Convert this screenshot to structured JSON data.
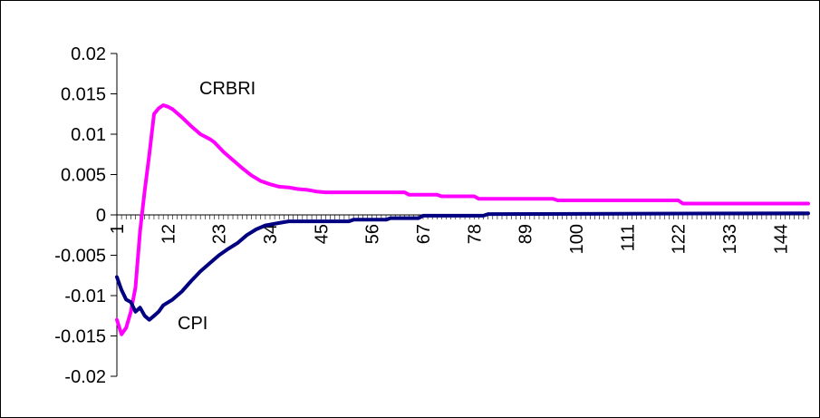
{
  "chart_data": {
    "type": "line",
    "title": "",
    "xlabel": "",
    "ylabel": "",
    "grid": false,
    "legend": "none",
    "xlim": [
      1,
      150
    ],
    "ylim": [
      -0.02,
      0.02
    ],
    "y_ticks": [
      {
        "value": 0.02,
        "label": "0.02"
      },
      {
        "value": 0.015,
        "label": "0.015"
      },
      {
        "value": 0.01,
        "label": "0.01"
      },
      {
        "value": 0.005,
        "label": "0.005"
      },
      {
        "value": 0,
        "label": "0"
      },
      {
        "value": -0.005,
        "label": "-0.005"
      },
      {
        "value": -0.01,
        "label": "-0.01"
      },
      {
        "value": -0.015,
        "label": "-0.015"
      },
      {
        "value": -0.02,
        "label": "-0.02"
      }
    ],
    "x_tick_labels": [
      "1",
      "12",
      "23",
      "34",
      "45",
      "56",
      "67",
      "78",
      "89",
      "100",
      "111",
      "122",
      "133",
      "144"
    ],
    "series": [
      {
        "name": "CRBRI",
        "color": "#ff00ff",
        "points": [
          [
            1,
            -0.013
          ],
          [
            2,
            -0.0148
          ],
          [
            3,
            -0.014
          ],
          [
            4,
            -0.012
          ],
          [
            5,
            -0.009
          ],
          [
            6,
            -0.002
          ],
          [
            7,
            0.003
          ],
          [
            8,
            0.0075
          ],
          [
            9,
            0.0125
          ],
          [
            10,
            0.0132
          ],
          [
            11,
            0.0136
          ],
          [
            12,
            0.0134
          ],
          [
            13,
            0.0131
          ],
          [
            14,
            0.0126
          ],
          [
            15,
            0.0121
          ],
          [
            17,
            0.011
          ],
          [
            19,
            0.01
          ],
          [
            21,
            0.0094
          ],
          [
            22,
            0.009
          ],
          [
            24,
            0.0078
          ],
          [
            26,
            0.0068
          ],
          [
            28,
            0.0058
          ],
          [
            30,
            0.0049
          ],
          [
            32,
            0.0042
          ],
          [
            34,
            0.0038
          ],
          [
            36,
            0.0035
          ],
          [
            38,
            0.0034
          ],
          [
            40,
            0.0032
          ],
          [
            42,
            0.0031
          ],
          [
            44,
            0.0029
          ],
          [
            46,
            0.0028
          ],
          [
            50,
            0.0028
          ],
          [
            55,
            0.0028
          ],
          [
            63,
            0.0028
          ],
          [
            64,
            0.0025
          ],
          [
            70,
            0.0025
          ],
          [
            71,
            0.0023
          ],
          [
            78,
            0.0023
          ],
          [
            79,
            0.002
          ],
          [
            95,
            0.002
          ],
          [
            96,
            0.0018
          ],
          [
            122,
            0.0018
          ],
          [
            123,
            0.0014
          ],
          [
            150,
            0.0014
          ]
        ]
      },
      {
        "name": "CPI",
        "color": "#000080",
        "points": [
          [
            1,
            -0.0077
          ],
          [
            2,
            -0.0093
          ],
          [
            3,
            -0.0105
          ],
          [
            4,
            -0.0108
          ],
          [
            5,
            -0.012
          ],
          [
            6,
            -0.0115
          ],
          [
            7,
            -0.0125
          ],
          [
            8,
            -0.013
          ],
          [
            9,
            -0.0125
          ],
          [
            10,
            -0.012
          ],
          [
            11,
            -0.0112
          ],
          [
            13,
            -0.0105
          ],
          [
            15,
            -0.0095
          ],
          [
            17,
            -0.0082
          ],
          [
            19,
            -0.007
          ],
          [
            21,
            -0.006
          ],
          [
            23,
            -0.005
          ],
          [
            25,
            -0.0042
          ],
          [
            27,
            -0.0035
          ],
          [
            29,
            -0.0025
          ],
          [
            31,
            -0.0018
          ],
          [
            33,
            -0.0013
          ],
          [
            36,
            -0.001
          ],
          [
            38,
            -0.0008
          ],
          [
            45,
            -0.0008
          ],
          [
            51,
            -0.0008
          ],
          [
            52,
            -0.0006
          ],
          [
            59,
            -0.0006
          ],
          [
            60,
            -0.0004
          ],
          [
            66,
            -0.0004
          ],
          [
            67,
            -0.0001
          ],
          [
            80,
            -0.0001
          ],
          [
            81,
            0.0001
          ],
          [
            150,
            0.0002
          ]
        ]
      }
    ],
    "annotations": [
      {
        "text": "CRBRI",
        "series": "CRBRI"
      },
      {
        "text": "CPI",
        "series": "CPI"
      }
    ]
  }
}
